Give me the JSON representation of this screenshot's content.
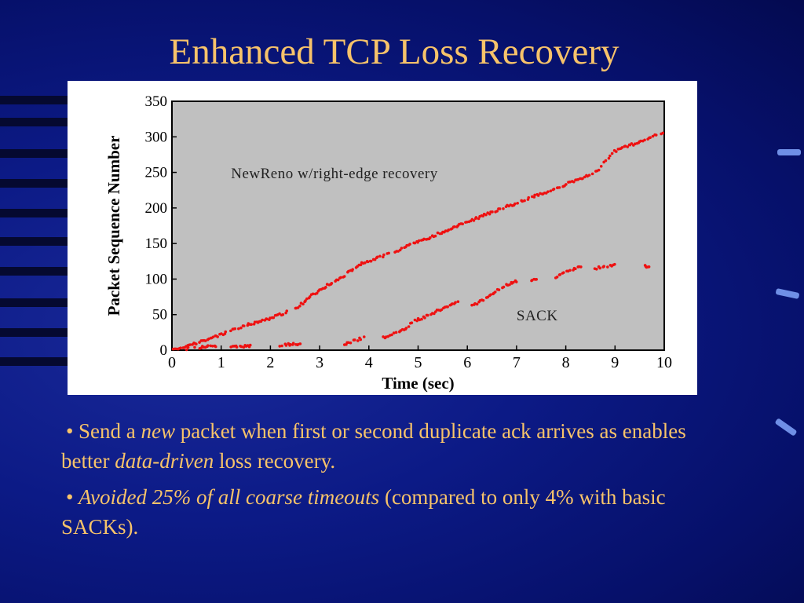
{
  "slide": {
    "title": "Enhanced TCP Loss Recovery",
    "colors": {
      "title": "#f7c36a",
      "background": "#0c1a86",
      "plot_area": "#c0c0c0",
      "points": "#ee1111"
    }
  },
  "bullets": [
    {
      "symbol": "•",
      "pre": "Send a ",
      "em1": "new",
      "mid": " packet when first or second duplicate ack arrives as enables better ",
      "em2": "data-driven",
      "post": " loss recovery."
    },
    {
      "symbol": "•",
      "em1": "Avoided 25% of all coarse timeouts",
      "mid": " (compared to only 4% with basic SACKs)."
    }
  ],
  "chart_data": {
    "type": "scatter",
    "title": "",
    "xlabel": "Time (sec)",
    "ylabel": "Packet Sequence Number",
    "xlim": [
      0,
      10
    ],
    "ylim": [
      0,
      350
    ],
    "xticks": [
      0,
      1,
      2,
      3,
      4,
      5,
      6,
      7,
      8,
      9,
      10
    ],
    "yticks": [
      0,
      50,
      100,
      150,
      200,
      250,
      300,
      350
    ],
    "grid": false,
    "annotations": [
      "NewReno w/right-edge recovery",
      "SACK"
    ],
    "series": [
      {
        "name": "NewReno w/right-edge recovery",
        "segments": [
          [
            0,
            0
          ],
          [
            0.5,
            10
          ],
          [
            1.0,
            22
          ],
          [
            1.2,
            28
          ],
          [
            1.5,
            35
          ],
          [
            2.0,
            45
          ],
          [
            2.5,
            58
          ],
          [
            3.0,
            85
          ],
          [
            3.5,
            105
          ],
          [
            3.8,
            120
          ],
          [
            4.5,
            138
          ],
          [
            5.0,
            152
          ],
          [
            6.0,
            180
          ],
          [
            6.6,
            197
          ],
          [
            7.0,
            207
          ],
          [
            7.7,
            225
          ],
          [
            8.0,
            233
          ],
          [
            8.6,
            250
          ],
          [
            9.0,
            280
          ],
          [
            9.5,
            293
          ],
          [
            10.0,
            307
          ]
        ]
      },
      {
        "name": "SACK",
        "groups": [
          {
            "from": [
              0.3,
              2
            ],
            "to": [
              0.9,
              6
            ]
          },
          {
            "from": [
              1.2,
              4
            ],
            "to": [
              1.6,
              6
            ]
          },
          {
            "from": [
              2.2,
              7
            ],
            "to": [
              2.6,
              9
            ]
          },
          {
            "from": [
              3.5,
              8
            ],
            "to": [
              3.9,
              18
            ]
          },
          {
            "from": [
              4.3,
              18
            ],
            "to": [
              4.8,
              32
            ]
          },
          {
            "from": [
              4.85,
              38
            ],
            "to": [
              5.8,
              68
            ]
          },
          {
            "from": [
              6.1,
              62
            ],
            "to": [
              6.8,
              92
            ]
          },
          {
            "from": [
              6.8,
              92
            ],
            "to": [
              7.0,
              97
            ]
          },
          {
            "from": [
              7.3,
              98
            ],
            "to": [
              7.4,
              100
            ]
          },
          {
            "from": [
              7.8,
              103
            ],
            "to": [
              8.3,
              118
            ]
          },
          {
            "from": [
              8.6,
              115
            ],
            "to": [
              9.0,
              120
            ]
          },
          {
            "from": [
              9.6,
              118
            ],
            "to": [
              9.7,
              118
            ]
          }
        ]
      }
    ]
  }
}
